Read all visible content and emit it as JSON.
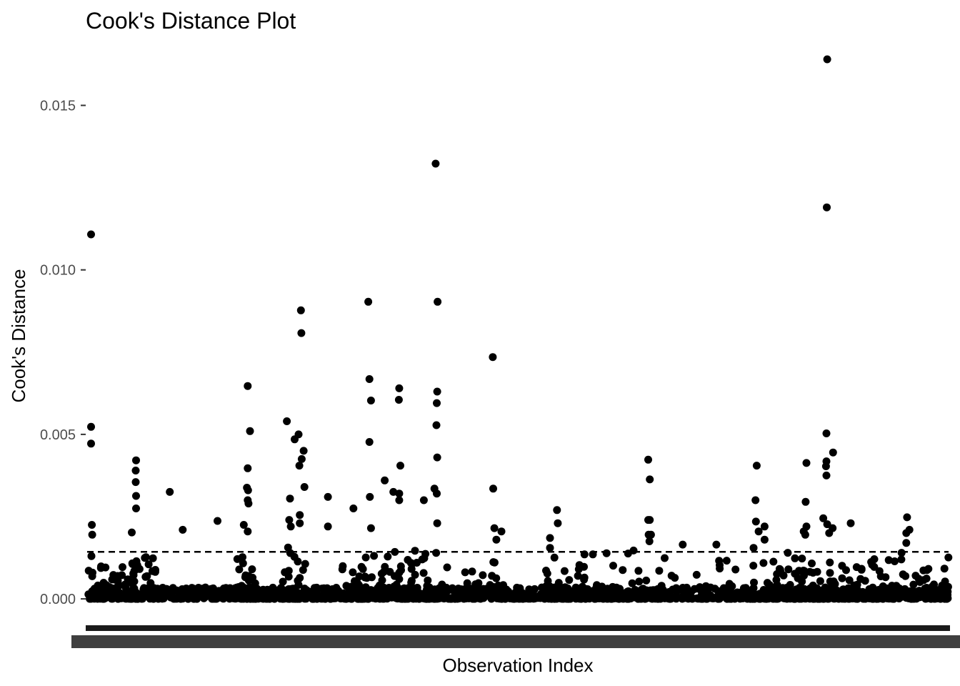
{
  "chart_data": {
    "type": "scatter",
    "title": "Cook's Distance Plot",
    "xlabel": "Observation Index",
    "ylabel": "Cook's Distance",
    "ylim": [
      -0.00065,
      0.0169
    ],
    "y_ticks": [
      {
        "value": 0.0,
        "label": "0.000"
      },
      {
        "value": 0.005,
        "label": "0.005"
      },
      {
        "value": 0.01,
        "label": "0.010"
      },
      {
        "value": 0.015,
        "label": "0.015"
      }
    ],
    "x_ticks_note": "x tick labels overlap into an unreadable band",
    "n_observations": 2200,
    "threshold": 0.00143,
    "grid": false,
    "point_color": "#000000",
    "threshold_color": "#000000",
    "highlighted_points": [
      {
        "x": 10,
        "y": 0.01108
      },
      {
        "x": 10,
        "y": 0.00523
      },
      {
        "x": 10,
        "y": 0.00472
      },
      {
        "x": 12,
        "y": 0.00225
      },
      {
        "x": 13,
        "y": 0.00195
      },
      {
        "x": 11,
        "y": 0.0013
      },
      {
        "x": 125,
        "y": 0.00421
      },
      {
        "x": 124,
        "y": 0.0039
      },
      {
        "x": 124,
        "y": 0.00355
      },
      {
        "x": 125,
        "y": 0.00313
      },
      {
        "x": 125,
        "y": 0.00275
      },
      {
        "x": 114,
        "y": 0.00202
      },
      {
        "x": 211,
        "y": 0.00325
      },
      {
        "x": 244,
        "y": 0.0021
      },
      {
        "x": 333,
        "y": 0.00237
      },
      {
        "x": 410,
        "y": 0.00647
      },
      {
        "x": 410,
        "y": 0.00397
      },
      {
        "x": 408,
        "y": 0.00338
      },
      {
        "x": 411,
        "y": 0.0033
      },
      {
        "x": 410,
        "y": 0.003
      },
      {
        "x": 412,
        "y": 0.0029
      },
      {
        "x": 416,
        "y": 0.0051
      },
      {
        "x": 400,
        "y": 0.00225
      },
      {
        "x": 410,
        "y": 0.00205
      },
      {
        "x": 510,
        "y": 0.0054
      },
      {
        "x": 530,
        "y": 0.00485
      },
      {
        "x": 540,
        "y": 0.005
      },
      {
        "x": 553,
        "y": 0.0045
      },
      {
        "x": 548,
        "y": 0.00425
      },
      {
        "x": 542,
        "y": 0.00405
      },
      {
        "x": 555,
        "y": 0.0034
      },
      {
        "x": 518,
        "y": 0.00305
      },
      {
        "x": 516,
        "y": 0.0024
      },
      {
        "x": 520,
        "y": 0.0022
      },
      {
        "x": 543,
        "y": 0.00255
      },
      {
        "x": 543,
        "y": 0.0023
      },
      {
        "x": 546,
        "y": 0.00877
      },
      {
        "x": 547,
        "y": 0.00808
      },
      {
        "x": 615,
        "y": 0.0031
      },
      {
        "x": 615,
        "y": 0.0022
      },
      {
        "x": 680,
        "y": 0.00275
      },
      {
        "x": 718,
        "y": 0.00903
      },
      {
        "x": 721,
        "y": 0.00668
      },
      {
        "x": 721,
        "y": 0.00477
      },
      {
        "x": 725,
        "y": 0.00603
      },
      {
        "x": 722,
        "y": 0.0031
      },
      {
        "x": 725,
        "y": 0.00215
      },
      {
        "x": 760,
        "y": 0.0036
      },
      {
        "x": 782,
        "y": 0.00325
      },
      {
        "x": 797,
        "y": 0.0064
      },
      {
        "x": 796,
        "y": 0.00605
      },
      {
        "x": 800,
        "y": 0.00405
      },
      {
        "x": 797,
        "y": 0.0032
      },
      {
        "x": 797,
        "y": 0.003
      },
      {
        "x": 860,
        "y": 0.003
      },
      {
        "x": 890,
        "y": 0.01323
      },
      {
        "x": 895,
        "y": 0.00903
      },
      {
        "x": 894,
        "y": 0.0063
      },
      {
        "x": 893,
        "y": 0.00595
      },
      {
        "x": 892,
        "y": 0.00528
      },
      {
        "x": 894,
        "y": 0.0043
      },
      {
        "x": 887,
        "y": 0.00335
      },
      {
        "x": 893,
        "y": 0.0032
      },
      {
        "x": 894,
        "y": 0.0023
      },
      {
        "x": 1036,
        "y": 0.00735
      },
      {
        "x": 1037,
        "y": 0.00335
      },
      {
        "x": 1040,
        "y": 0.00215
      },
      {
        "x": 1045,
        "y": 0.0018
      },
      {
        "x": 1058,
        "y": 0.00205
      },
      {
        "x": 1182,
        "y": 0.00185
      },
      {
        "x": 1182,
        "y": 0.00155
      },
      {
        "x": 1200,
        "y": 0.0027
      },
      {
        "x": 1202,
        "y": 0.0023
      },
      {
        "x": 1433,
        "y": 0.00423
      },
      {
        "x": 1437,
        "y": 0.00363
      },
      {
        "x": 1433,
        "y": 0.0024
      },
      {
        "x": 1437,
        "y": 0.0024
      },
      {
        "x": 1434,
        "y": 0.00195
      },
      {
        "x": 1440,
        "y": 0.00195
      },
      {
        "x": 1436,
        "y": 0.00175
      },
      {
        "x": 1521,
        "y": 0.00165
      },
      {
        "x": 1607,
        "y": 0.00165
      },
      {
        "x": 1710,
        "y": 0.00405
      },
      {
        "x": 1707,
        "y": 0.003
      },
      {
        "x": 1708,
        "y": 0.00235
      },
      {
        "x": 1730,
        "y": 0.0022
      },
      {
        "x": 1715,
        "y": 0.00205
      },
      {
        "x": 1730,
        "y": 0.0018
      },
      {
        "x": 1702,
        "y": 0.00155
      },
      {
        "x": 1837,
        "y": 0.00413
      },
      {
        "x": 1835,
        "y": 0.00295
      },
      {
        "x": 1837,
        "y": 0.0022
      },
      {
        "x": 1830,
        "y": 0.00205
      },
      {
        "x": 1834,
        "y": 0.00195
      },
      {
        "x": 1888,
        "y": 0.00503
      },
      {
        "x": 1888,
        "y": 0.00418
      },
      {
        "x": 1887,
        "y": 0.00403
      },
      {
        "x": 1888,
        "y": 0.00375
      },
      {
        "x": 1905,
        "y": 0.00445
      },
      {
        "x": 1890,
        "y": 0.00227
      },
      {
        "x": 1880,
        "y": 0.00245
      },
      {
        "x": 1904,
        "y": 0.00215
      },
      {
        "x": 1895,
        "y": 0.002
      },
      {
        "x": 1950,
        "y": 0.0023
      },
      {
        "x": 1890,
        "y": 0.0164
      },
      {
        "x": 1889,
        "y": 0.0119
      },
      {
        "x": 2094,
        "y": 0.00248
      },
      {
        "x": 2092,
        "y": 0.002
      },
      {
        "x": 2100,
        "y": 0.0021
      },
      {
        "x": 2092,
        "y": 0.0017
      },
      {
        "x": 2080,
        "y": 0.0014
      }
    ],
    "dense_clusters": [
      {
        "x_from": 0,
        "x_to": 2200,
        "max_y": 0.00035,
        "count": 1400
      },
      {
        "x_from": 0,
        "x_to": 140,
        "max_y": 0.0011,
        "count": 45
      },
      {
        "x_from": 110,
        "x_to": 175,
        "max_y": 0.0017,
        "count": 30
      },
      {
        "x_from": 380,
        "x_to": 430,
        "max_y": 0.0013,
        "count": 40
      },
      {
        "x_from": 500,
        "x_to": 560,
        "max_y": 0.0016,
        "count": 40
      },
      {
        "x_from": 620,
        "x_to": 700,
        "max_y": 0.0013,
        "count": 30
      },
      {
        "x_from": 700,
        "x_to": 900,
        "max_y": 0.0015,
        "count": 100
      },
      {
        "x_from": 900,
        "x_to": 1070,
        "max_y": 0.0012,
        "count": 40
      },
      {
        "x_from": 1170,
        "x_to": 1280,
        "max_y": 0.0014,
        "count": 40
      },
      {
        "x_from": 1280,
        "x_to": 1420,
        "max_y": 0.0015,
        "count": 35
      },
      {
        "x_from": 1420,
        "x_to": 1700,
        "max_y": 0.0013,
        "count": 50
      },
      {
        "x_from": 1700,
        "x_to": 2000,
        "max_y": 0.0014,
        "count": 100
      },
      {
        "x_from": 2000,
        "x_to": 2200,
        "max_y": 0.0013,
        "count": 60
      }
    ]
  }
}
